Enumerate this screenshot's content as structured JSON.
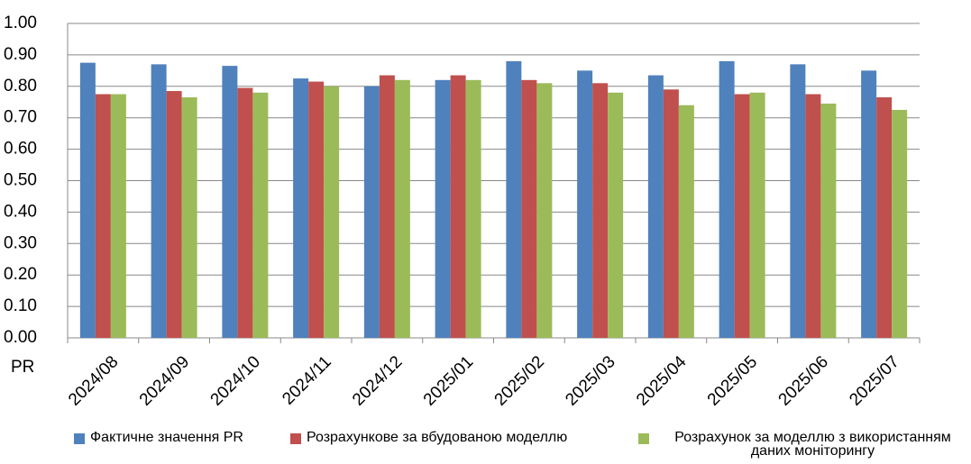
{
  "chart_data": {
    "type": "bar",
    "y_label": "PR",
    "categories": [
      "2024/08",
      "2024/09",
      "2024/10",
      "2024/11",
      "2024/12",
      "2025/01",
      "2025/02",
      "2025/03",
      "2025/04",
      "2025/05",
      "2025/06",
      "2025/07"
    ],
    "series": [
      {
        "name": "Фактичне значення PR",
        "color": "#4f81bd",
        "values": [
          0.875,
          0.87,
          0.865,
          0.825,
          0.8,
          0.82,
          0.88,
          0.85,
          0.835,
          0.88,
          0.87,
          0.85
        ]
      },
      {
        "name": "Розрахункове за вбудованою моделлю",
        "color": "#c0504d",
        "values": [
          0.775,
          0.785,
          0.795,
          0.815,
          0.835,
          0.835,
          0.82,
          0.81,
          0.79,
          0.775,
          0.775,
          0.765
        ]
      },
      {
        "name": "Розрахунок за моделлю з використанням даних моніторингу",
        "color": "#9bbb59",
        "values": [
          0.775,
          0.765,
          0.78,
          0.8,
          0.82,
          0.82,
          0.81,
          0.78,
          0.74,
          0.78,
          0.745,
          0.725
        ]
      }
    ],
    "ylim": [
      0,
      1
    ],
    "yticks": [
      {
        "value": 0,
        "label": "0.00"
      },
      {
        "value": 0.1,
        "label": "0.10"
      },
      {
        "value": 0.2,
        "label": "0.20"
      },
      {
        "value": 0.3,
        "label": "0.30"
      },
      {
        "value": 0.4,
        "label": "0.40"
      },
      {
        "value": 0.5,
        "label": "0.50"
      },
      {
        "value": 0.6,
        "label": "0.60"
      },
      {
        "value": 0.7,
        "label": "0.70"
      },
      {
        "value": 0.8,
        "label": "0.80"
      },
      {
        "value": 0.9,
        "label": "0.90"
      },
      {
        "value": 1,
        "label": "1.00"
      }
    ],
    "grid": true,
    "legend": "bottom"
  }
}
